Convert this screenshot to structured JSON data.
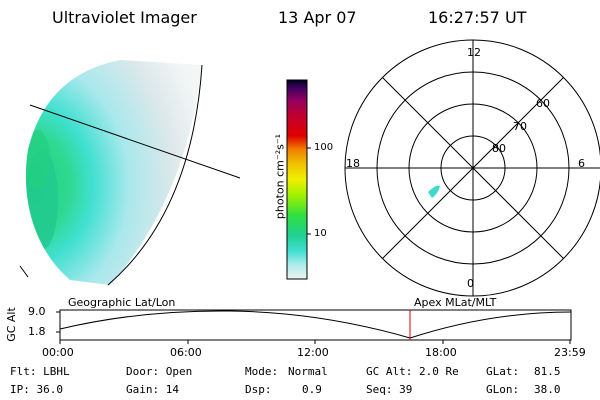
{
  "header": {
    "instrument": "Ultraviolet Imager",
    "date": "13 Apr 07",
    "time": "16:27:57 UT"
  },
  "colorbar": {
    "unit_label": "photon cm⁻²s⁻¹",
    "ticks": [
      "100",
      "10"
    ],
    "scale": "log",
    "colors": [
      "#e8eef0",
      "#b0ecec",
      "#40e0d0",
      "#20d090",
      "#30e040",
      "#a0f000",
      "#f0f000",
      "#f0c000",
      "#f08000",
      "#e00000",
      "#c00030",
      "#900060",
      "#400060",
      "#000020"
    ]
  },
  "polar_plot": {
    "mlt_labels": [
      "12",
      "18",
      "6",
      "0"
    ],
    "lat_labels": [
      "60",
      "70",
      "80"
    ]
  },
  "timeline": {
    "left_label": "Geographic Lat/Lon",
    "right_label": "Apex MLat/MLT",
    "axis_label": "GC Alt",
    "y_ticks": [
      "9.0",
      "1.8"
    ],
    "x_ticks": [
      "00:00",
      "06:00",
      "12:00",
      "18:00",
      "23:59"
    ],
    "current_time_marker": "16:27:57"
  },
  "info": {
    "flt": "Flt: LBHL",
    "ip": "IP: 36.0",
    "door": "Door: Open",
    "gain": "Gain: 14",
    "mode_label": "Mode:",
    "mode_value": "Normal",
    "dsp_label": "Dsp:",
    "dsp_value": "0.9",
    "gc_alt": "GC Alt: 2.0 Re",
    "seq": "Seq: 39",
    "glat_label": "GLat:",
    "glat_value": "81.5",
    "glon_label": "GLon:",
    "glon_value": "38.0"
  }
}
